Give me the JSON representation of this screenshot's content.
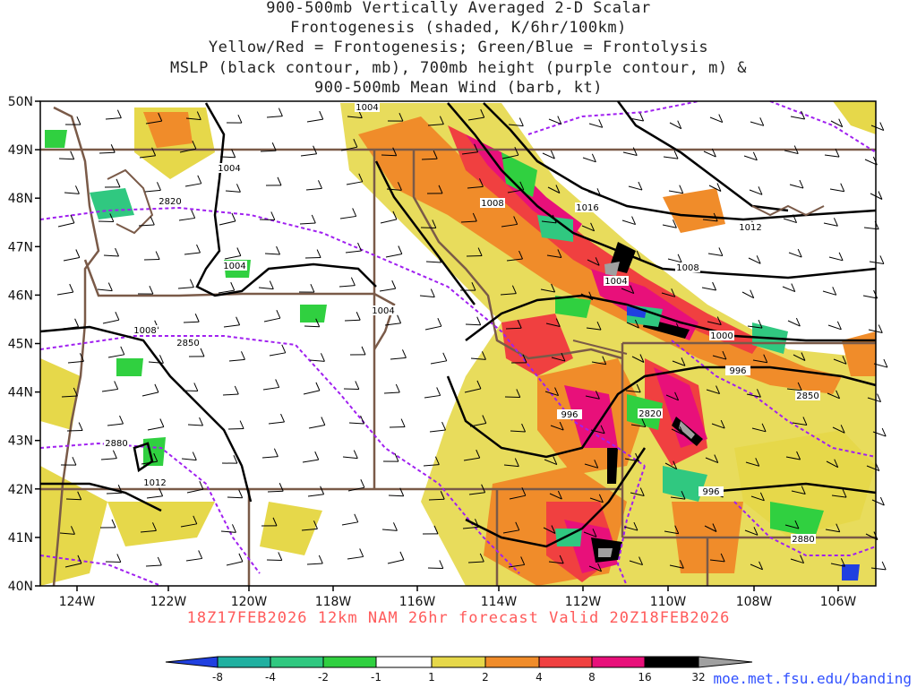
{
  "title_lines": [
    "900-500mb Vertically Averaged 2-D Scalar",
    "Frontogenesis (shaded, K/6hr/100km)",
    "Yellow/Red = Frontogenesis;  Green/Blue = Frontolysis",
    "MSLP (black contour, mb), 700mb height (purple contour, m) &",
    "900-500mb Mean Wind (barb, kt)"
  ],
  "footer": "18Z17FEB2026 12km NAM 26hr forecast Valid 20Z18FEB2026",
  "url": "moe.met.fsu.edu/banding",
  "map": {
    "lon_labels": [
      "124W",
      "122W",
      "120W",
      "118W",
      "116W",
      "114W",
      "112W",
      "110W",
      "108W",
      "106W"
    ],
    "lat_labels": [
      "50N",
      "49N",
      "48N",
      "47N",
      "46N",
      "45N",
      "44N",
      "43N",
      "42N",
      "41N",
      "40N"
    ],
    "mslp_labels": [
      "1004",
      "1004",
      "1004",
      "1004",
      "1004",
      "1008",
      "1008",
      "1008",
      "1012",
      "1016",
      "1000",
      "996",
      "996",
      "996",
      "1012"
    ],
    "height_labels": [
      "2820",
      "2850",
      "2880",
      "2850",
      "2820",
      "2880"
    ]
  },
  "colorbar": {
    "ticks": [
      "-8",
      "-4",
      "-2",
      "-1",
      "1",
      "2",
      "4",
      "8",
      "16",
      "32"
    ],
    "colors": [
      "#2040e0",
      "#20b0a0",
      "#30c880",
      "#30d040",
      "#ffffff",
      "#e6d84a",
      "#f08c2a",
      "#f04040",
      "#e8107a",
      "#000000",
      "#a0a0a0"
    ]
  },
  "colors": {
    "mslp": "#000000",
    "height": "#a020f0",
    "borders": "#7a5a48",
    "footer": "#ff5a5a",
    "url": "#3050ff"
  }
}
